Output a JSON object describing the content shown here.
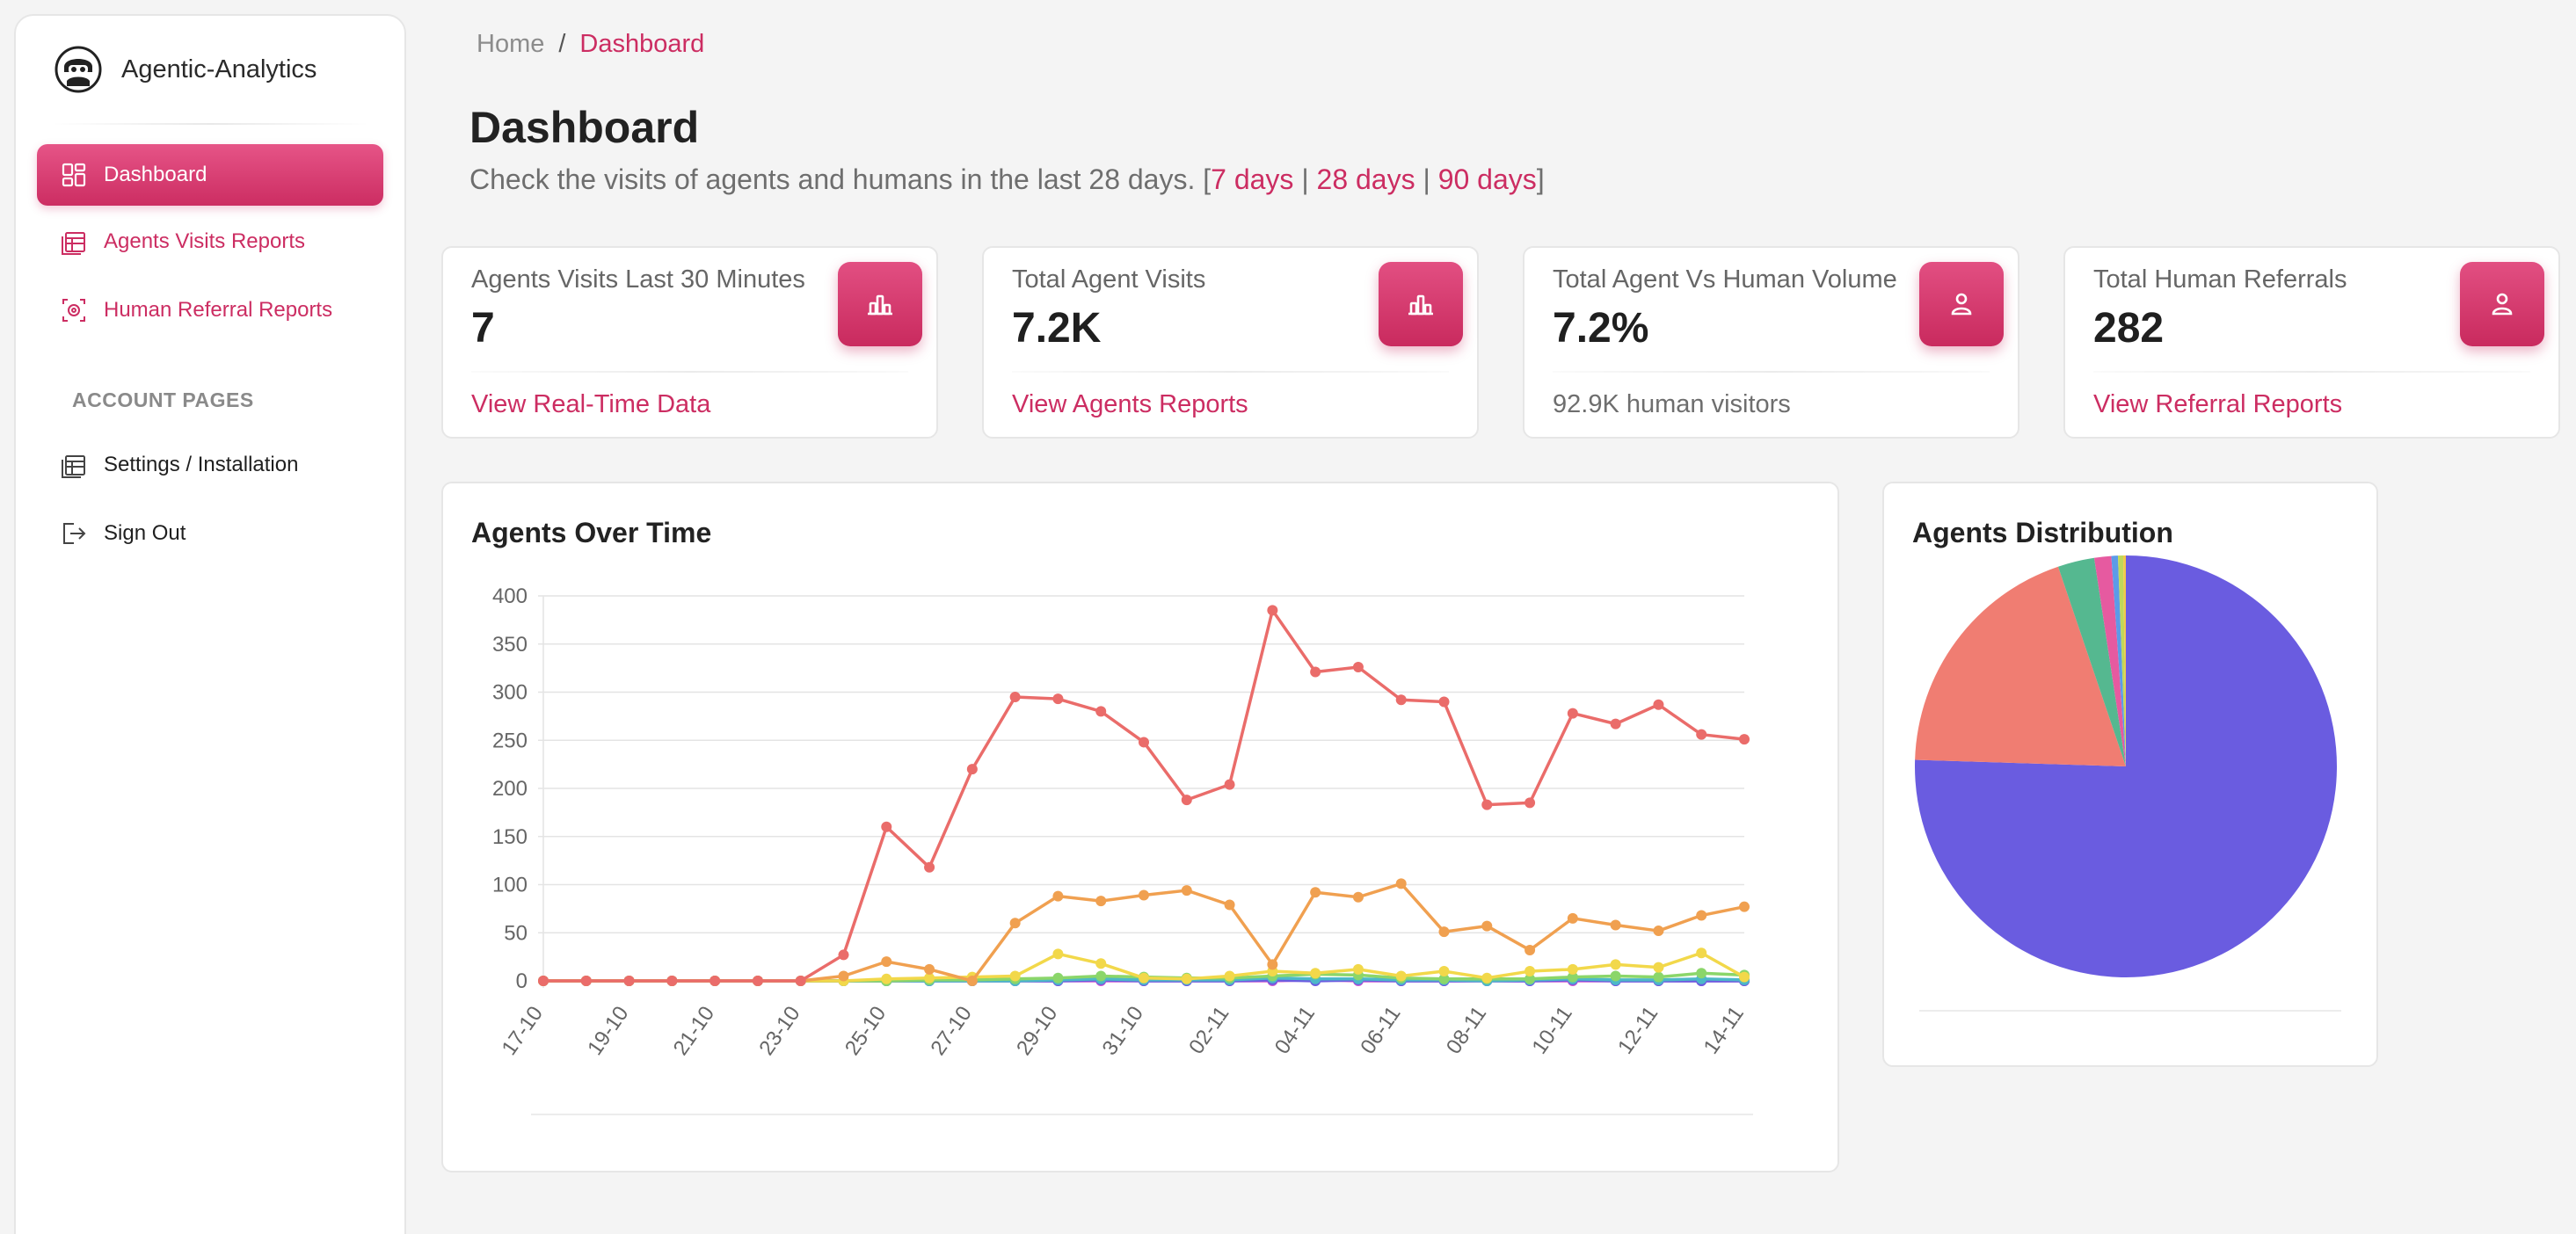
{
  "app": {
    "name": "Agentic-Analytics"
  },
  "sidebar": {
    "items": [
      {
        "label": "Dashboard",
        "icon": "dashboard-grid-icon",
        "active": true
      },
      {
        "label": "Agents Visits Reports",
        "icon": "table-icon"
      },
      {
        "label": "Human Referral Reports",
        "icon": "referral-icon"
      }
    ],
    "section_title": "ACCOUNT PAGES",
    "account_items": [
      {
        "label": "Settings / Installation",
        "icon": "table-icon"
      },
      {
        "label": "Sign Out",
        "icon": "sign-out-icon"
      }
    ]
  },
  "breadcrumb": {
    "home": "Home",
    "separator": "/",
    "current": "Dashboard"
  },
  "header": {
    "title": "Dashboard",
    "subtitle_prefix": "Check the visits of agents and humans in the last 28 days. [",
    "subtitle_suffix": "]",
    "ranges": [
      "7 days",
      "28 days",
      "90 days"
    ],
    "range_separator": "|"
  },
  "stats": [
    {
      "label": "Agents Visits Last 30 Minutes",
      "value": "7",
      "footer": "View Real-Time Data",
      "footer_is_link": true,
      "icon": "bar-chart-icon"
    },
    {
      "label": "Total Agent Visits",
      "value": "7.2K",
      "footer": "View Agents Reports",
      "footer_is_link": true,
      "icon": "bar-chart-icon"
    },
    {
      "label": "Total Agent Vs Human Volume",
      "value": "7.2%",
      "footer": "92.9K human visitors",
      "footer_is_link": false,
      "icon": "user-icon"
    },
    {
      "label": "Total Human Referrals",
      "value": "282",
      "footer": "View Referral Reports",
      "footer_is_link": true,
      "icon": "user-icon"
    }
  ],
  "colors": {
    "accent": "#cc2d62",
    "accent_light": "#e65487"
  },
  "chart_data": [
    {
      "type": "line",
      "title": "Agents Over Time",
      "xlabel": "",
      "ylabel": "",
      "ylim": [
        0,
        400
      ],
      "yticks": [
        0,
        50,
        100,
        150,
        200,
        250,
        300,
        350,
        400
      ],
      "grid": true,
      "x": [
        "17-10",
        "18-10",
        "19-10",
        "20-10",
        "21-10",
        "22-10",
        "23-10",
        "24-10",
        "25-10",
        "26-10",
        "27-10",
        "28-10",
        "29-10",
        "30-10",
        "31-10",
        "01-11",
        "02-11",
        "03-11",
        "04-11",
        "05-11",
        "06-11",
        "07-11",
        "08-11",
        "09-11",
        "10-11",
        "11-11",
        "12-11",
        "13-11",
        "14-11"
      ],
      "x_tick_labels": [
        "17-10",
        "19-10",
        "21-10",
        "23-10",
        "25-10",
        "27-10",
        "29-10",
        "31-10",
        "02-11",
        "04-11",
        "06-11",
        "08-11",
        "10-11",
        "12-11",
        "14-11"
      ],
      "series": [
        {
          "color": "#ea6c6a",
          "values": [
            0,
            0,
            0,
            0,
            0,
            0,
            0,
            27,
            160,
            118,
            220,
            295,
            293,
            280,
            248,
            188,
            204,
            385,
            321,
            326,
            292,
            290,
            183,
            185,
            278,
            267,
            287,
            256,
            251
          ]
        },
        {
          "color": "#f0a050",
          "values": [
            0,
            0,
            0,
            0,
            0,
            0,
            0,
            5,
            20,
            12,
            0,
            60,
            88,
            83,
            89,
            94,
            79,
            17,
            92,
            87,
            101,
            51,
            57,
            32,
            65,
            58,
            52,
            68,
            77
          ]
        },
        {
          "color": "#f2d84a",
          "values": [
            0,
            0,
            0,
            0,
            0,
            0,
            0,
            0,
            2,
            3,
            4,
            5,
            28,
            18,
            3,
            2,
            5,
            10,
            8,
            12,
            5,
            10,
            3,
            10,
            12,
            17,
            14,
            29,
            4
          ]
        },
        {
          "color": "#8bd66a",
          "values": [
            0,
            0,
            0,
            0,
            0,
            0,
            0,
            0,
            0,
            1,
            1,
            2,
            3,
            5,
            4,
            3,
            3,
            5,
            7,
            6,
            3,
            2,
            2,
            2,
            4,
            5,
            4,
            8,
            6
          ]
        },
        {
          "color": "#4cb8c8",
          "values": [
            0,
            0,
            0,
            0,
            0,
            0,
            0,
            0,
            0,
            0,
            0,
            0,
            1,
            2,
            1,
            1,
            1,
            3,
            2,
            2,
            1,
            1,
            0,
            1,
            2,
            1,
            1,
            2,
            1
          ]
        },
        {
          "color": "#6a5ce0",
          "values": [
            0,
            0,
            0,
            0,
            0,
            0,
            0,
            0,
            0,
            0,
            0,
            0,
            0,
            1,
            0,
            0,
            0,
            1,
            0,
            1,
            0,
            0,
            0,
            0,
            1,
            0,
            0,
            0,
            0
          ]
        },
        {
          "color": "#d05ad0",
          "values": [
            0,
            0,
            0,
            0,
            0,
            0,
            0,
            0,
            0,
            0,
            0,
            0,
            0,
            0,
            0,
            0,
            0,
            0,
            1,
            0,
            0,
            0,
            0,
            0,
            0,
            0,
            0,
            0,
            0
          ]
        }
      ]
    },
    {
      "type": "pie",
      "title": "Agents Distribution",
      "slices": [
        {
          "value": 75.5,
          "color": "#6a5ce0"
        },
        {
          "value": 19.3,
          "color": "#f07d72"
        },
        {
          "value": 2.8,
          "color": "#55b890"
        },
        {
          "value": 1.3,
          "color": "#e65aa0"
        },
        {
          "value": 0.5,
          "color": "#5c9be8"
        },
        {
          "value": 0.4,
          "color": "#c0d85a"
        },
        {
          "value": 0.2,
          "color": "#f2c84a"
        }
      ]
    }
  ]
}
